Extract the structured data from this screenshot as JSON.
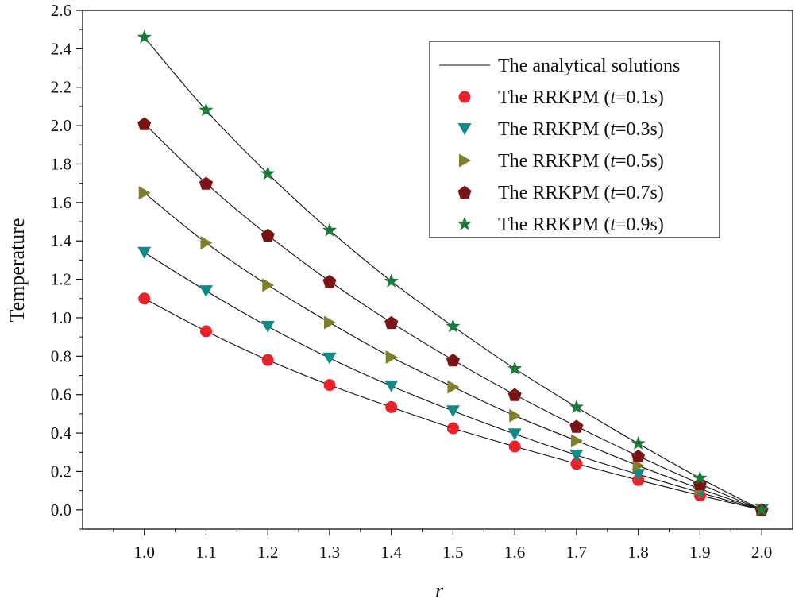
{
  "chart_data": {
    "type": "line",
    "title": "",
    "xlabel": "r",
    "ylabel": "Temperature",
    "xlim": [
      0.9,
      2.05
    ],
    "ylim": [
      -0.1,
      2.6
    ],
    "xticks": [
      "1.0",
      "1.1",
      "1.2",
      "1.3",
      "1.4",
      "1.5",
      "1.6",
      "1.7",
      "1.8",
      "1.9",
      "2.0"
    ],
    "yticks": [
      "0.0",
      "0.2",
      "0.4",
      "0.6",
      "0.8",
      "1.0",
      "1.2",
      "1.4",
      "1.6",
      "1.8",
      "2.0",
      "2.2",
      "2.4",
      "2.6"
    ],
    "x": [
      1.0,
      1.1,
      1.2,
      1.3,
      1.4,
      1.5,
      1.6,
      1.7,
      1.8,
      1.9,
      2.0
    ],
    "legend_position": "top-right",
    "legend": {
      "line_label": "The analytical solutions",
      "items": [
        {
          "prefix": "The RRKPM (",
          "var": "t",
          "suffix": "=0.1s)"
        },
        {
          "prefix": "The RRKPM (",
          "var": "t",
          "suffix": "=0.3s)"
        },
        {
          "prefix": "The RRKPM (",
          "var": "t",
          "suffix": "=0.5s)"
        },
        {
          "prefix": "The RRKPM (",
          "var": "t",
          "suffix": "=0.7s)"
        },
        {
          "prefix": "The RRKPM (",
          "var": "t",
          "suffix": "=0.9s)"
        }
      ]
    },
    "series": [
      {
        "name": "The RRKPM (t=0.1s)",
        "marker": "circle",
        "color": "#e8222a",
        "values": [
          1.1,
          0.93,
          0.78,
          0.65,
          0.535,
          0.425,
          0.33,
          0.24,
          0.155,
          0.075,
          0.0
        ]
      },
      {
        "name": "The RRKPM (t=0.3s)",
        "marker": "triangle-down",
        "color": "#138a8a",
        "values": [
          1.34,
          1.14,
          0.955,
          0.79,
          0.645,
          0.515,
          0.395,
          0.285,
          0.185,
          0.09,
          0.0
        ]
      },
      {
        "name": "The RRKPM (t=0.5s)",
        "marker": "triangle-right",
        "color": "#7f7f2b",
        "values": [
          1.65,
          1.39,
          1.17,
          0.975,
          0.795,
          0.64,
          0.49,
          0.36,
          0.23,
          0.11,
          0.0
        ]
      },
      {
        "name": "The RRKPM (t=0.7s)",
        "marker": "pentagon",
        "color": "#7a1414",
        "values": [
          2.01,
          1.7,
          1.43,
          1.19,
          0.975,
          0.78,
          0.6,
          0.435,
          0.28,
          0.135,
          0.0
        ]
      },
      {
        "name": "The RRKPM (t=0.9s)",
        "marker": "star",
        "color": "#1e7a3a",
        "values": [
          2.46,
          2.08,
          1.75,
          1.455,
          1.19,
          0.955,
          0.735,
          0.535,
          0.345,
          0.165,
          0.0
        ]
      }
    ]
  }
}
